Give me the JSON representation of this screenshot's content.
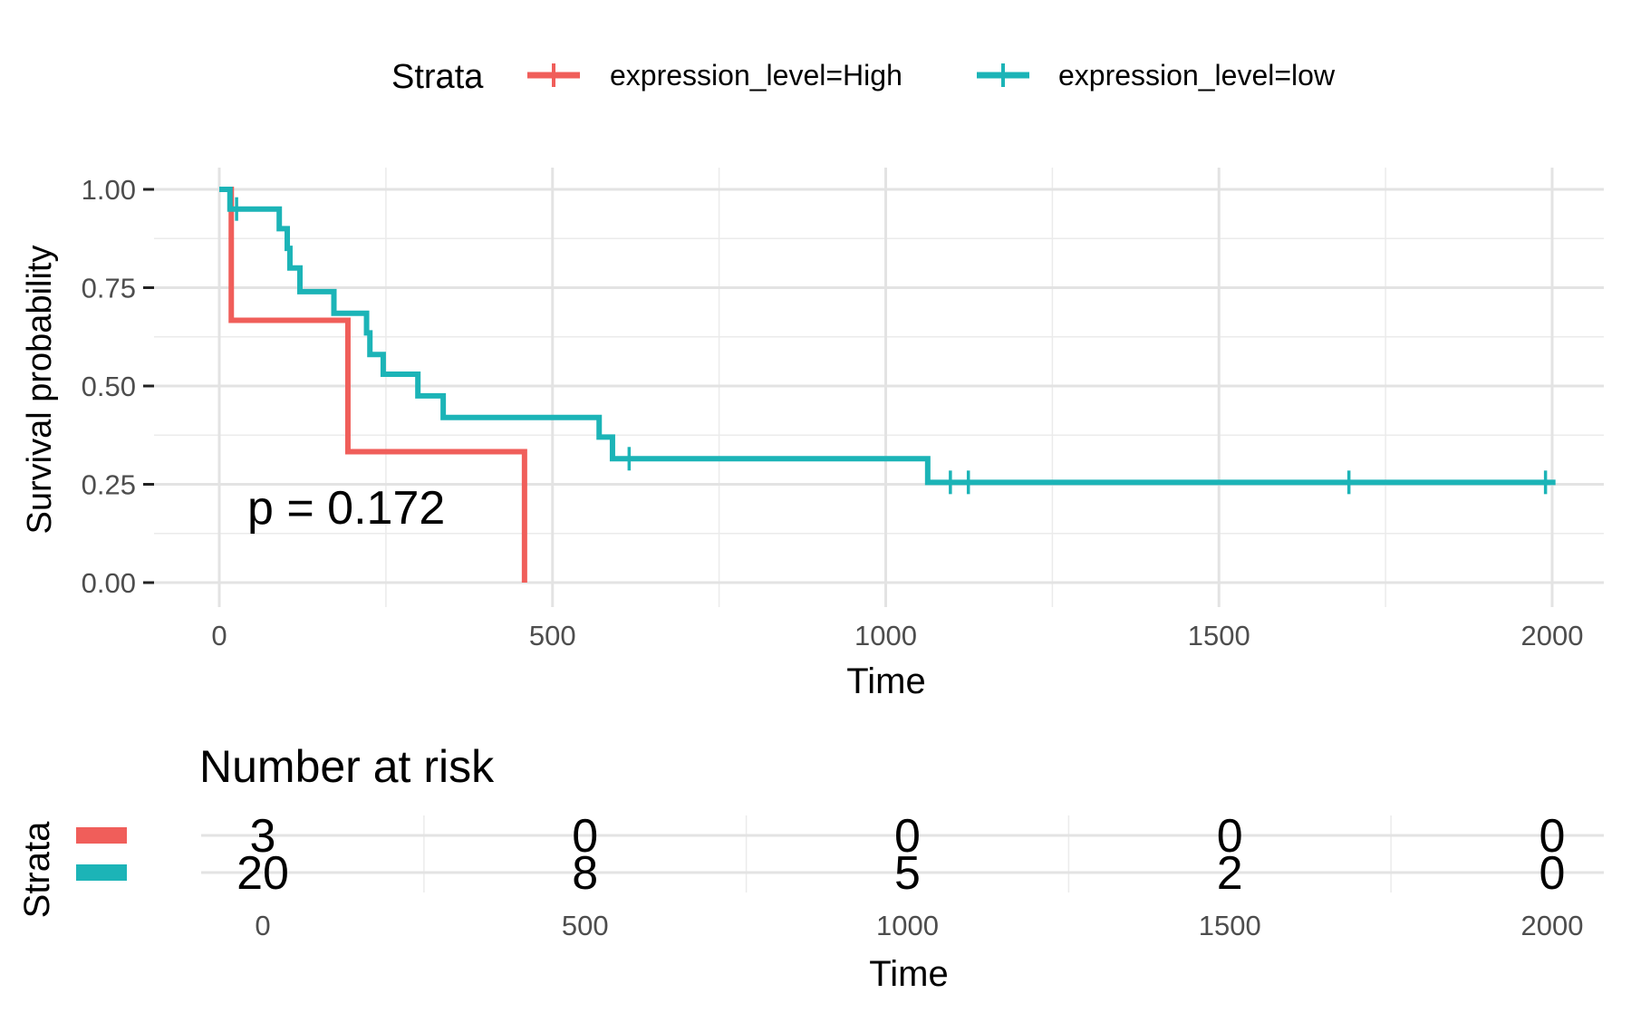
{
  "legend": {
    "title": "Strata",
    "entries": [
      {
        "label": "expression_level=High",
        "color": "#F05E5A"
      },
      {
        "label": "expression_level=low",
        "color": "#1CB4B7"
      }
    ]
  },
  "chart_data": [
    {
      "type": "line",
      "subtype": "kaplan-meier",
      "xlabel": "Time",
      "ylabel": "Survival probability",
      "xlim": [
        0,
        2000
      ],
      "ylim": [
        0,
        1
      ],
      "x_ticks": [
        "0",
        "500",
        "1000",
        "1500",
        "2000"
      ],
      "y_ticks": [
        "0.00",
        "0.25",
        "0.50",
        "0.75",
        "1.00"
      ],
      "grid": true,
      "legend_position": "top",
      "annotation": "p = 0.172",
      "series": [
        {
          "name": "expression_level=High",
          "color": "#F05E5A",
          "steps": [
            [
              0,
              1.0
            ],
            [
              18,
              0.667
            ],
            [
              193,
              0.333
            ],
            [
              458,
              0.0
            ]
          ],
          "censored": []
        },
        {
          "name": "expression_level=low",
          "color": "#1CB4B7",
          "steps": [
            [
              0,
              1.0
            ],
            [
              16,
              0.95
            ],
            [
              90,
              0.9
            ],
            [
              102,
              0.85
            ],
            [
              106,
              0.8
            ],
            [
              121,
              0.74
            ],
            [
              172,
              0.685
            ],
            [
              221,
              0.635
            ],
            [
              226,
              0.58
            ],
            [
              246,
              0.53
            ],
            [
              298,
              0.475
            ],
            [
              336,
              0.42
            ],
            [
              570,
              0.37
            ],
            [
              590,
              0.315
            ],
            [
              1063,
              0.255
            ],
            [
              2005,
              0.255
            ]
          ],
          "censored": [
            [
              26,
              0.95
            ],
            [
              615,
              0.315
            ],
            [
              1097,
              0.255
            ],
            [
              1124,
              0.255
            ],
            [
              1695,
              0.255
            ],
            [
              1990,
              0.255
            ]
          ]
        }
      ]
    },
    {
      "type": "table",
      "title": "Number at risk",
      "xlabel": "Time",
      "ylabel": "Strata",
      "x_ticks": [
        "0",
        "500",
        "1000",
        "1500",
        "2000"
      ],
      "rows": [
        {
          "name": "expression_level=High",
          "color": "#F05E5A",
          "values": [
            "3",
            "0",
            "0",
            "0",
            "0"
          ]
        },
        {
          "name": "expression_level=low",
          "color": "#1CB4B7",
          "values": [
            "20",
            "8",
            "5",
            "2",
            "0"
          ]
        }
      ]
    }
  ]
}
